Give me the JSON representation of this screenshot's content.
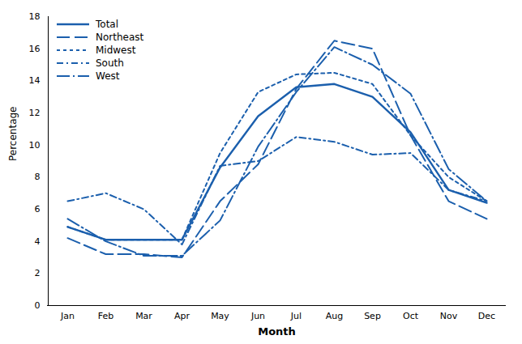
{
  "chart_data": {
    "type": "line",
    "categories": [
      "Jan",
      "Feb",
      "Mar",
      "Apr",
      "May",
      "Jun",
      "Jul",
      "Aug",
      "Sep",
      "Oct",
      "Nov",
      "Dec"
    ],
    "series": [
      {
        "name": "Total",
        "line_style": "solid",
        "values": [
          4.9,
          4.1,
          4.1,
          4.1,
          8.6,
          11.8,
          13.6,
          13.8,
          13.0,
          10.8,
          7.2,
          6.4
        ]
      },
      {
        "name": "Northeast",
        "line_style": "dashed",
        "values": [
          4.2,
          3.2,
          3.2,
          3.0,
          6.5,
          8.8,
          13.5,
          16.5,
          16.0,
          10.6,
          6.5,
          5.4
        ]
      },
      {
        "name": "Midwest",
        "line_style": "dotted",
        "values": [
          4.9,
          4.1,
          4.1,
          4.1,
          9.5,
          13.3,
          14.4,
          14.5,
          13.8,
          10.6,
          8.0,
          6.5
        ]
      },
      {
        "name": "South",
        "line_style": "dashdot",
        "values": [
          6.5,
          7.0,
          6.0,
          3.8,
          8.7,
          9.0,
          10.5,
          10.2,
          9.4,
          9.5,
          7.2,
          6.5
        ]
      },
      {
        "name": "West",
        "line_style": "longdashdot",
        "values": [
          5.4,
          4.0,
          3.1,
          3.1,
          5.3,
          9.9,
          13.3,
          16.1,
          15.0,
          13.2,
          8.5,
          6.5
        ]
      }
    ],
    "color": "#1b5fad",
    "xlabel": "Month",
    "ylabel": "Percentage",
    "ylim": [
      0,
      18
    ],
    "yticks": [
      0,
      2,
      4,
      6,
      8,
      10,
      12,
      14,
      16,
      18
    ],
    "grid": false,
    "legend": "upper left"
  }
}
